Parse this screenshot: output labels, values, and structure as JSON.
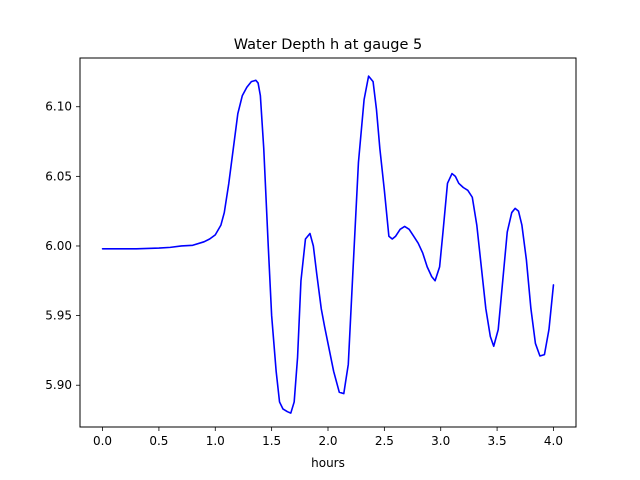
{
  "chart_data": {
    "type": "line",
    "title": "Water Depth h at gauge 5",
    "xlabel": "hours",
    "ylabel": "",
    "xlim": [
      -0.2,
      4.2
    ],
    "ylim": [
      5.87,
      6.135
    ],
    "grid": false,
    "line_color": "#0000ff",
    "x_ticks": [
      0.0,
      0.5,
      1.0,
      1.5,
      2.0,
      2.5,
      3.0,
      3.5,
      4.0
    ],
    "x_tick_labels": [
      "0.0",
      "0.5",
      "1.0",
      "1.5",
      "2.0",
      "2.5",
      "3.0",
      "3.5",
      "4.0"
    ],
    "y_ticks": [
      5.9,
      5.95,
      6.0,
      6.05,
      6.1
    ],
    "y_tick_labels": [
      "5.90",
      "5.95",
      "6.00",
      "6.05",
      "6.10"
    ],
    "series": [
      {
        "x": [
          0.0,
          0.3,
          0.5,
          0.6,
          0.7,
          0.8,
          0.9,
          0.95,
          1.0,
          1.05,
          1.08,
          1.12,
          1.16,
          1.2,
          1.24,
          1.28,
          1.32,
          1.36,
          1.38,
          1.4,
          1.43,
          1.47,
          1.5,
          1.54,
          1.57,
          1.6,
          1.64,
          1.67,
          1.7,
          1.73,
          1.76,
          1.8,
          1.84,
          1.87,
          1.9,
          1.94,
          1.97,
          2.0,
          2.05,
          2.1,
          2.14,
          2.18,
          2.22,
          2.27,
          2.32,
          2.36,
          2.4,
          2.43,
          2.46,
          2.5,
          2.54,
          2.57,
          2.6,
          2.64,
          2.68,
          2.72,
          2.76,
          2.8,
          2.84,
          2.88,
          2.92,
          2.95,
          2.99,
          3.02,
          3.06,
          3.1,
          3.13,
          3.16,
          3.2,
          3.24,
          3.28,
          3.32,
          3.36,
          3.4,
          3.44,
          3.47,
          3.51,
          3.55,
          3.59,
          3.63,
          3.66,
          3.69,
          3.72,
          3.76,
          3.8,
          3.84,
          3.88,
          3.92,
          3.96,
          4.0
        ],
        "y": [
          5.998,
          5.998,
          5.9985,
          5.999,
          6.0,
          6.0005,
          6.003,
          6.005,
          6.008,
          6.015,
          6.024,
          6.045,
          6.07,
          6.095,
          6.108,
          6.114,
          6.118,
          6.119,
          6.117,
          6.108,
          6.07,
          6.0,
          5.95,
          5.91,
          5.888,
          5.883,
          5.881,
          5.88,
          5.888,
          5.92,
          5.975,
          6.005,
          6.009,
          6.0,
          5.98,
          5.955,
          5.942,
          5.93,
          5.91,
          5.895,
          5.894,
          5.915,
          5.98,
          6.06,
          6.105,
          6.122,
          6.118,
          6.098,
          6.07,
          6.04,
          6.007,
          6.005,
          6.007,
          6.012,
          6.014,
          6.012,
          6.007,
          6.002,
          5.995,
          5.985,
          5.978,
          5.975,
          5.985,
          6.01,
          6.045,
          6.052,
          6.05,
          6.045,
          6.042,
          6.04,
          6.035,
          6.015,
          5.985,
          5.955,
          5.935,
          5.928,
          5.94,
          5.975,
          6.01,
          6.024,
          6.027,
          6.025,
          6.015,
          5.99,
          5.955,
          5.93,
          5.921,
          5.922,
          5.94,
          5.972
        ]
      }
    ]
  }
}
